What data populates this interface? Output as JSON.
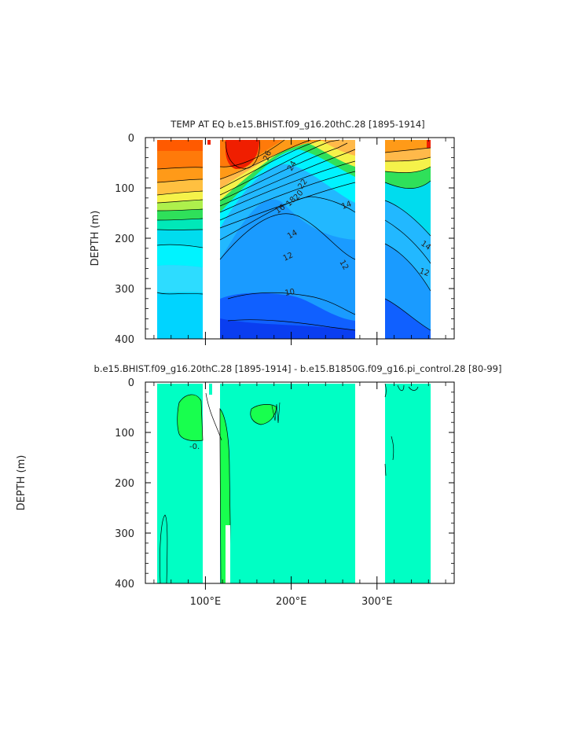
{
  "chart_data": [
    {
      "type": "heatmap",
      "title": "TEMP AT EQ  b.e15.BHIST.f09_g16.20thC.28  [1895-1914]",
      "xlabel": "",
      "ylabel": "DEPTH (m)",
      "xlim": [
        30,
        390
      ],
      "ylim": [
        400,
        0
      ],
      "y_ticks": [
        "0",
        "100",
        "200",
        "300",
        "400"
      ],
      "x_tick_labels": [],
      "contour_labels": [
        {
          "text": "26",
          "lon": 158,
          "depth": 35
        },
        {
          "text": "24",
          "lon": 182,
          "depth": 55
        },
        {
          "text": "22",
          "lon": 196,
          "depth": 95
        },
        {
          "text": "20",
          "lon": 188,
          "depth": 120
        },
        {
          "text": "18",
          "lon": 178,
          "depth": 135
        },
        {
          "text": "16",
          "lon": 165,
          "depth": 148
        },
        {
          "text": "14",
          "lon": 150,
          "depth": 185
        },
        {
          "text": "12",
          "lon": 145,
          "depth": 230
        },
        {
          "text": "10",
          "lon": 182,
          "depth": 300
        },
        {
          "text": "14",
          "lon": 247,
          "depth": 130
        },
        {
          "text": "12",
          "lon": 242,
          "depth": 240
        },
        {
          "text": "14",
          "lon": 354,
          "depth": 198
        },
        {
          "text": "12",
          "lon": 349,
          "depth": 262
        }
      ],
      "land_gaps_lon": [
        [
          97,
          117
        ],
        [
          278,
          316
        ]
      ],
      "data_lon_range": [
        44,
        370
      ]
    },
    {
      "type": "heatmap",
      "title": "b.e15.BHIST.f09_g16.20thC.28  [1895-1914]  -  b.e15.B1850G.f09_g16.pi_control.28  [80-99]",
      "xlabel": "",
      "ylabel": "DEPTH (m)",
      "xlim": [
        30,
        390
      ],
      "ylim": [
        400,
        0
      ],
      "y_ticks": [
        "0",
        "100",
        "200",
        "300",
        "400"
      ],
      "x_tick_labels": [
        "100°E",
        "200°E",
        "300°E"
      ],
      "contour_labels": [
        {
          "text": "-0.",
          "lon": 88,
          "depth": 128
        }
      ],
      "land_gaps_lon": [
        [
          97,
          117
        ],
        [
          278,
          316
        ]
      ],
      "data_lon_range": [
        44,
        370
      ]
    }
  ],
  "colors": {
    "warm_26": "#f01e00",
    "warm_24": "#ff5a00",
    "warm_22": "#ff9a18",
    "warm_20": "#ffb94a",
    "yellow": "#f5f24a",
    "green": "#2fe05a",
    "cyan": "#00f3ff",
    "mid_blue": "#1a9bff",
    "deep_blue": "#0a3ef0",
    "diff_bg": "#00ffc4",
    "diff_green": "#18ff4e"
  }
}
